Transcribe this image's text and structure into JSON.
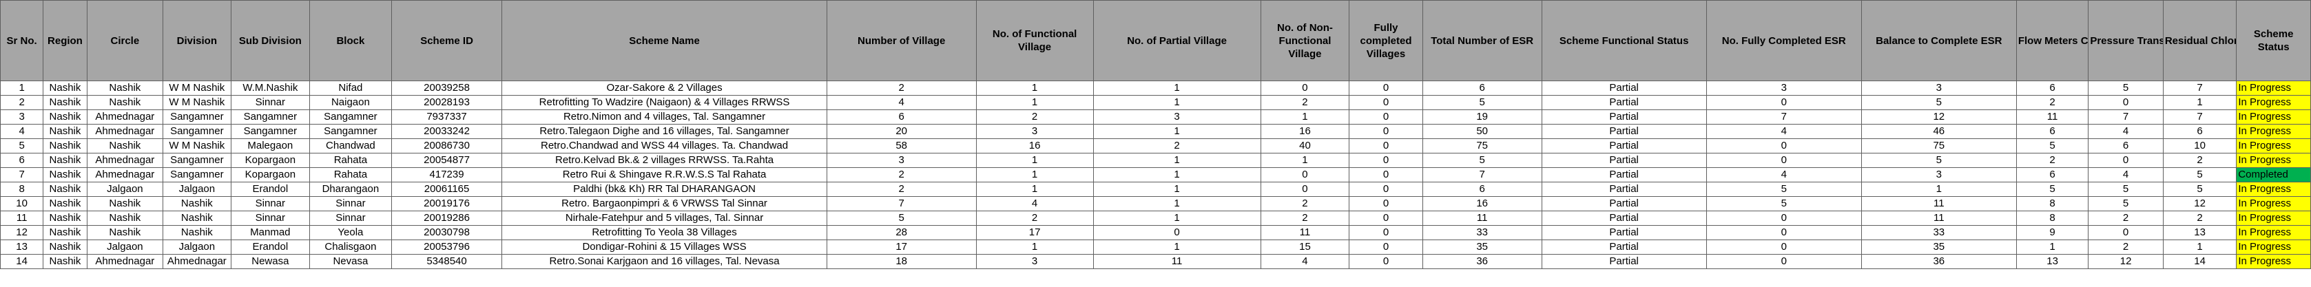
{
  "colors": {
    "header_bg": "#a6a6a6",
    "in_progress": "#ffff00",
    "completed": "#00b050"
  },
  "headers": [
    "Sr No.",
    "Region",
    "Circle",
    "Division",
    "Sub Division",
    "Block",
    "Scheme ID",
    "Scheme Name",
    "Number of Village",
    "No. of Functional Village",
    "No. of Partial Village",
    "No. of Non-Functional Village",
    "Fully completed Villages",
    "Total Number of ESR",
    "Scheme Functional Status",
    "No. Fully Completed ESR",
    "Balance to Complete ESR",
    "Flow Meters Connected",
    "Pressure Transmitter Connected",
    "Residual Chlorine Connected",
    "Scheme Status"
  ],
  "rows": [
    {
      "sr": "1",
      "region": "Nashik",
      "circle": "Nashik",
      "division": "W M Nashik",
      "subdivision": "W.M.Nashik",
      "block": "Nifad",
      "scheme_id": "20039258",
      "scheme_name": "Ozar-Sakore & 2 Villages",
      "villages": "2",
      "functional": "1",
      "partial": "1",
      "nonfunctional": "0",
      "fully_completed": "0",
      "total_esr": "6",
      "functional_status": "Partial",
      "esr_completed": "3",
      "esr_balance": "3",
      "flow": "6",
      "pressure": "5",
      "chlorine": "7",
      "status": "In Progress"
    },
    {
      "sr": "2",
      "region": "Nashik",
      "circle": "Nashik",
      "division": "W M Nashik",
      "subdivision": "Sinnar",
      "block": "Naigaon",
      "scheme_id": "20028193",
      "scheme_name": "Retrofitting To Wadzire (Naigaon) & 4 Villages RRWSS",
      "villages": "4",
      "functional": "1",
      "partial": "1",
      "nonfunctional": "2",
      "fully_completed": "0",
      "total_esr": "5",
      "functional_status": "Partial",
      "esr_completed": "0",
      "esr_balance": "5",
      "flow": "2",
      "pressure": "0",
      "chlorine": "1",
      "status": "In Progress"
    },
    {
      "sr": "3",
      "region": "Nashik",
      "circle": "Ahmednagar",
      "division": "Sangamner",
      "subdivision": "Sangamner",
      "block": "Sangamner",
      "scheme_id": "7937337",
      "scheme_name": "Retro.Nimon and 4 villages, Tal. Sangamner",
      "villages": "6",
      "functional": "2",
      "partial": "3",
      "nonfunctional": "1",
      "fully_completed": "0",
      "total_esr": "19",
      "functional_status": "Partial",
      "esr_completed": "7",
      "esr_balance": "12",
      "flow": "11",
      "pressure": "7",
      "chlorine": "7",
      "status": "In Progress"
    },
    {
      "sr": "4",
      "region": "Nashik",
      "circle": "Ahmednagar",
      "division": "Sangamner",
      "subdivision": "Sangamner",
      "block": "Sangamner",
      "scheme_id": "20033242",
      "scheme_name": "Retro.Talegaon Dighe and 16 villages, Tal. Sangamner",
      "villages": "20",
      "functional": "3",
      "partial": "1",
      "nonfunctional": "16",
      "fully_completed": "0",
      "total_esr": "50",
      "functional_status": "Partial",
      "esr_completed": "4",
      "esr_balance": "46",
      "flow": "6",
      "pressure": "4",
      "chlorine": "6",
      "status": "In Progress"
    },
    {
      "sr": "5",
      "region": "Nashik",
      "circle": "Nashik",
      "division": "W M Nashik",
      "subdivision": "Malegaon",
      "block": "Chandwad",
      "scheme_id": "20086730",
      "scheme_name": "Retro.Chandwad and WSS 44 villages. Ta. Chandwad",
      "villages": "58",
      "functional": "16",
      "partial": "2",
      "nonfunctional": "40",
      "fully_completed": "0",
      "total_esr": "75",
      "functional_status": "Partial",
      "esr_completed": "0",
      "esr_balance": "75",
      "flow": "5",
      "pressure": "6",
      "chlorine": "10",
      "status": "In Progress"
    },
    {
      "sr": "6",
      "region": "Nashik",
      "circle": "Ahmednagar",
      "division": "Sangamner",
      "subdivision": "Kopargaon",
      "block": "Rahata",
      "scheme_id": "20054877",
      "scheme_name": "Retro.Kelvad Bk.& 2 villages RRWSS. Ta.Rahta",
      "villages": "3",
      "functional": "1",
      "partial": "1",
      "nonfunctional": "1",
      "fully_completed": "0",
      "total_esr": "5",
      "functional_status": "Partial",
      "esr_completed": "0",
      "esr_balance": "5",
      "flow": "2",
      "pressure": "0",
      "chlorine": "2",
      "status": "In Progress"
    },
    {
      "sr": "7",
      "region": "Nashik",
      "circle": "Ahmednagar",
      "division": "Sangamner",
      "subdivision": "Kopargaon",
      "block": "Rahata",
      "scheme_id": "417239",
      "scheme_name": "Retro Rui & Shingave R.R.W.S.S Tal Rahata",
      "villages": "2",
      "functional": "1",
      "partial": "1",
      "nonfunctional": "0",
      "fully_completed": "0",
      "total_esr": "7",
      "functional_status": "Partial",
      "esr_completed": "4",
      "esr_balance": "3",
      "flow": "6",
      "pressure": "4",
      "chlorine": "5",
      "status": "Completed"
    },
    {
      "sr": "8",
      "region": "Nashik",
      "circle": "Jalgaon",
      "division": "Jalgaon",
      "subdivision": "Erandol",
      "block": "Dharangaon",
      "scheme_id": "20061165",
      "scheme_name": "Paldhi (bk& Kh) RR Tal DHARANGAON",
      "villages": "2",
      "functional": "1",
      "partial": "1",
      "nonfunctional": "0",
      "fully_completed": "0",
      "total_esr": "6",
      "functional_status": "Partial",
      "esr_completed": "5",
      "esr_balance": "1",
      "flow": "5",
      "pressure": "5",
      "chlorine": "5",
      "status": "In Progress"
    },
    {
      "sr": "10",
      "region": "Nashik",
      "circle": "Nashik",
      "division": "Nashik",
      "subdivision": "Sinnar",
      "block": "Sinnar",
      "scheme_id": "20019176",
      "scheme_name": "Retro. Bargaonpimpri & 6 VRWSS  Tal Sinnar",
      "villages": "7",
      "functional": "4",
      "partial": "1",
      "nonfunctional": "2",
      "fully_completed": "0",
      "total_esr": "16",
      "functional_status": "Partial",
      "esr_completed": "5",
      "esr_balance": "11",
      "flow": "8",
      "pressure": "5",
      "chlorine": "12",
      "status": "In Progress"
    },
    {
      "sr": "11",
      "region": "Nashik",
      "circle": "Nashik",
      "division": "Nashik",
      "subdivision": "Sinnar",
      "block": "Sinnar",
      "scheme_id": "20019286",
      "scheme_name": "Nirhale-Fatehpur and 5 villages, Tal. Sinnar",
      "villages": "5",
      "functional": "2",
      "partial": "1",
      "nonfunctional": "2",
      "fully_completed": "0",
      "total_esr": "11",
      "functional_status": "Partial",
      "esr_completed": "0",
      "esr_balance": "11",
      "flow": "8",
      "pressure": "2",
      "chlorine": "2",
      "status": "In Progress"
    },
    {
      "sr": "12",
      "region": "Nashik",
      "circle": "Nashik",
      "division": "Nashik",
      "subdivision": "Manmad",
      "block": "Yeola",
      "scheme_id": "20030798",
      "scheme_name": "Retrofitting To Yeola 38 Villages",
      "villages": "28",
      "functional": "17",
      "partial": "0",
      "nonfunctional": "11",
      "fully_completed": "0",
      "total_esr": "33",
      "functional_status": "Partial",
      "esr_completed": "0",
      "esr_balance": "33",
      "flow": "9",
      "pressure": "0",
      "chlorine": "13",
      "status": "In Progress"
    },
    {
      "sr": "13",
      "region": "Nashik",
      "circle": "Jalgaon",
      "division": "Jalgaon",
      "subdivision": "Erandol",
      "block": "Chalisgaon",
      "scheme_id": "20053796",
      "scheme_name": "Dondigar-Rohini & 15 Villages WSS",
      "villages": "17",
      "functional": "1",
      "partial": "1",
      "nonfunctional": "15",
      "fully_completed": "0",
      "total_esr": "35",
      "functional_status": "Partial",
      "esr_completed": "0",
      "esr_balance": "35",
      "flow": "1",
      "pressure": "2",
      "chlorine": "1",
      "status": "In Progress"
    },
    {
      "sr": "14",
      "region": "Nashik",
      "circle": "Ahmednagar",
      "division": "Ahmednagar",
      "subdivision": "Newasa",
      "block": "Nevasa",
      "scheme_id": "5348540",
      "scheme_name": "Retro.Sonai Karjgaon and 16 villages, Tal. Nevasa",
      "villages": "18",
      "functional": "3",
      "partial": "11",
      "nonfunctional": "4",
      "fully_completed": "0",
      "total_esr": "36",
      "functional_status": "Partial",
      "esr_completed": "0",
      "esr_balance": "36",
      "flow": "13",
      "pressure": "12",
      "chlorine": "14",
      "status": "In Progress"
    }
  ]
}
